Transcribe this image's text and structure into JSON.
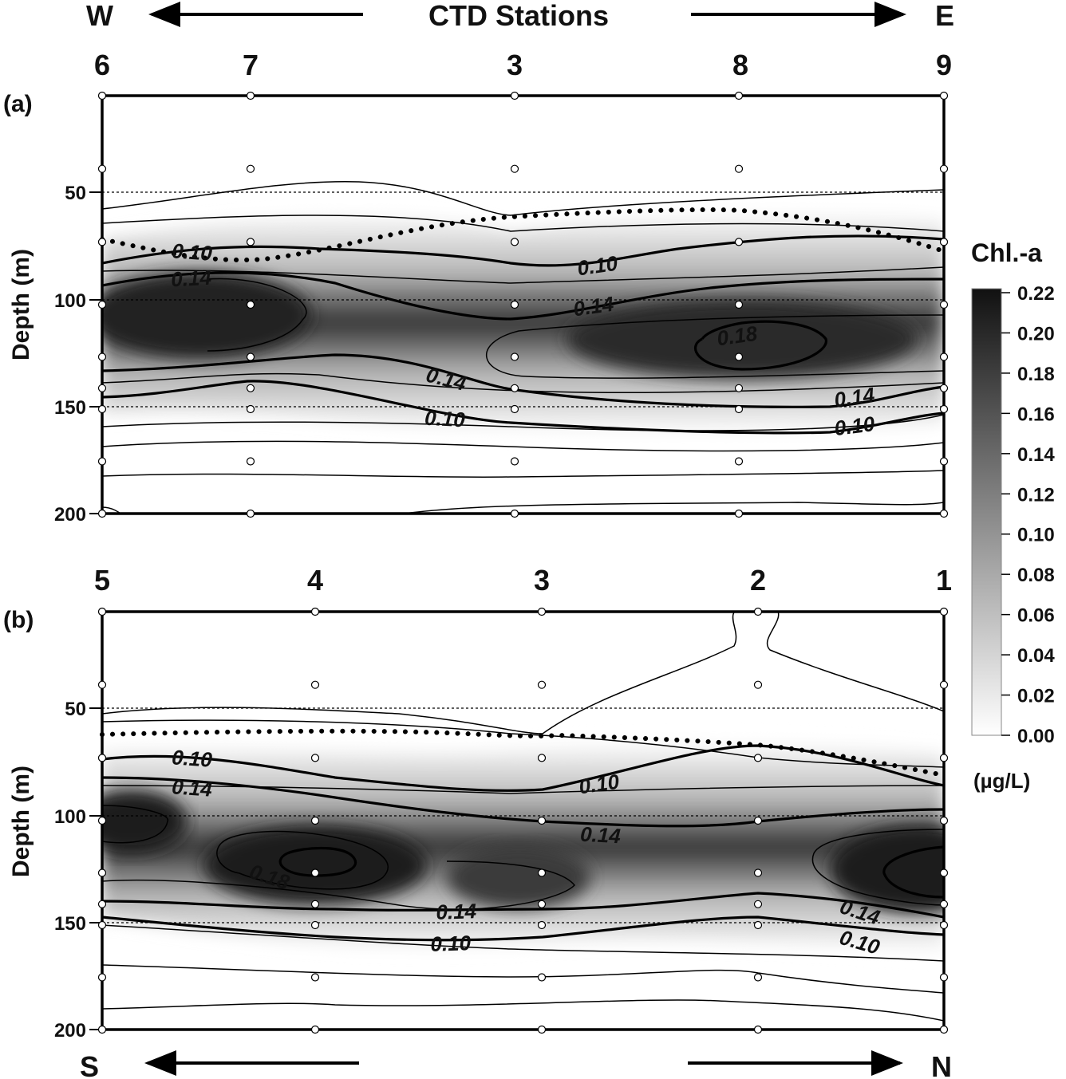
{
  "header": {
    "west": "W",
    "east": "E",
    "title": "CTD Stations"
  },
  "footer": {
    "south": "S",
    "north": "N"
  },
  "colorbar": {
    "title": "Chl.-a",
    "unit": "(µg/L)",
    "ticks": [
      "0.22",
      "0.20",
      "0.18",
      "0.16",
      "0.14",
      "0.12",
      "0.10",
      "0.08",
      "0.06",
      "0.04",
      "0.02",
      "0.00"
    ],
    "range": [
      0,
      0.22
    ],
    "colormap": "white-to-black"
  },
  "chart_data": [
    {
      "type": "heatmap",
      "panel": "(a)",
      "ylabel": "Depth (m)",
      "ylim": [
        0,
        200
      ],
      "y_ticks": [
        "50",
        "100",
        "150",
        "200"
      ],
      "reference_depths": [
        50,
        100,
        150
      ],
      "stations": [
        "6",
        "7",
        "3",
        "8",
        "9"
      ],
      "sample_depths": [
        0,
        35,
        70,
        100,
        125,
        140,
        150,
        175,
        200
      ],
      "contour_labels": [
        {
          "text": "0.10",
          "depth": 72
        },
        {
          "text": "0.14",
          "depth": 88
        },
        {
          "text": "0.10",
          "depth": 80
        },
        {
          "text": "0.14",
          "depth": 102
        },
        {
          "text": "0.18",
          "depth": 116
        },
        {
          "text": "0.14",
          "depth": 135
        },
        {
          "text": "0.10",
          "depth": 153
        },
        {
          "text": "0.14",
          "depth": 142
        },
        {
          "text": "0.10",
          "depth": 157
        }
      ],
      "max_chl_depth": 115
    },
    {
      "type": "heatmap",
      "panel": "(b)",
      "ylabel": "Depth (m)",
      "ylim": [
        0,
        200
      ],
      "y_ticks": [
        "50",
        "100",
        "150",
        "200"
      ],
      "reference_depths": [
        50,
        100,
        150
      ],
      "stations": [
        "5",
        "4",
        "3",
        "2",
        "1"
      ],
      "sample_depths": [
        0,
        35,
        70,
        100,
        125,
        140,
        150,
        175,
        200
      ],
      "contour_labels": [
        {
          "text": "0.10",
          "depth": 68
        },
        {
          "text": "0.14",
          "depth": 83
        },
        {
          "text": "0.10",
          "depth": 84
        },
        {
          "text": "0.14",
          "depth": 106
        },
        {
          "text": "0.18",
          "depth": 126
        },
        {
          "text": "0.14",
          "depth": 146
        },
        {
          "text": "0.10",
          "depth": 159
        },
        {
          "text": "0.14",
          "depth": 140
        },
        {
          "text": "0.10",
          "depth": 154
        }
      ],
      "max_chl_depth": 120
    }
  ]
}
